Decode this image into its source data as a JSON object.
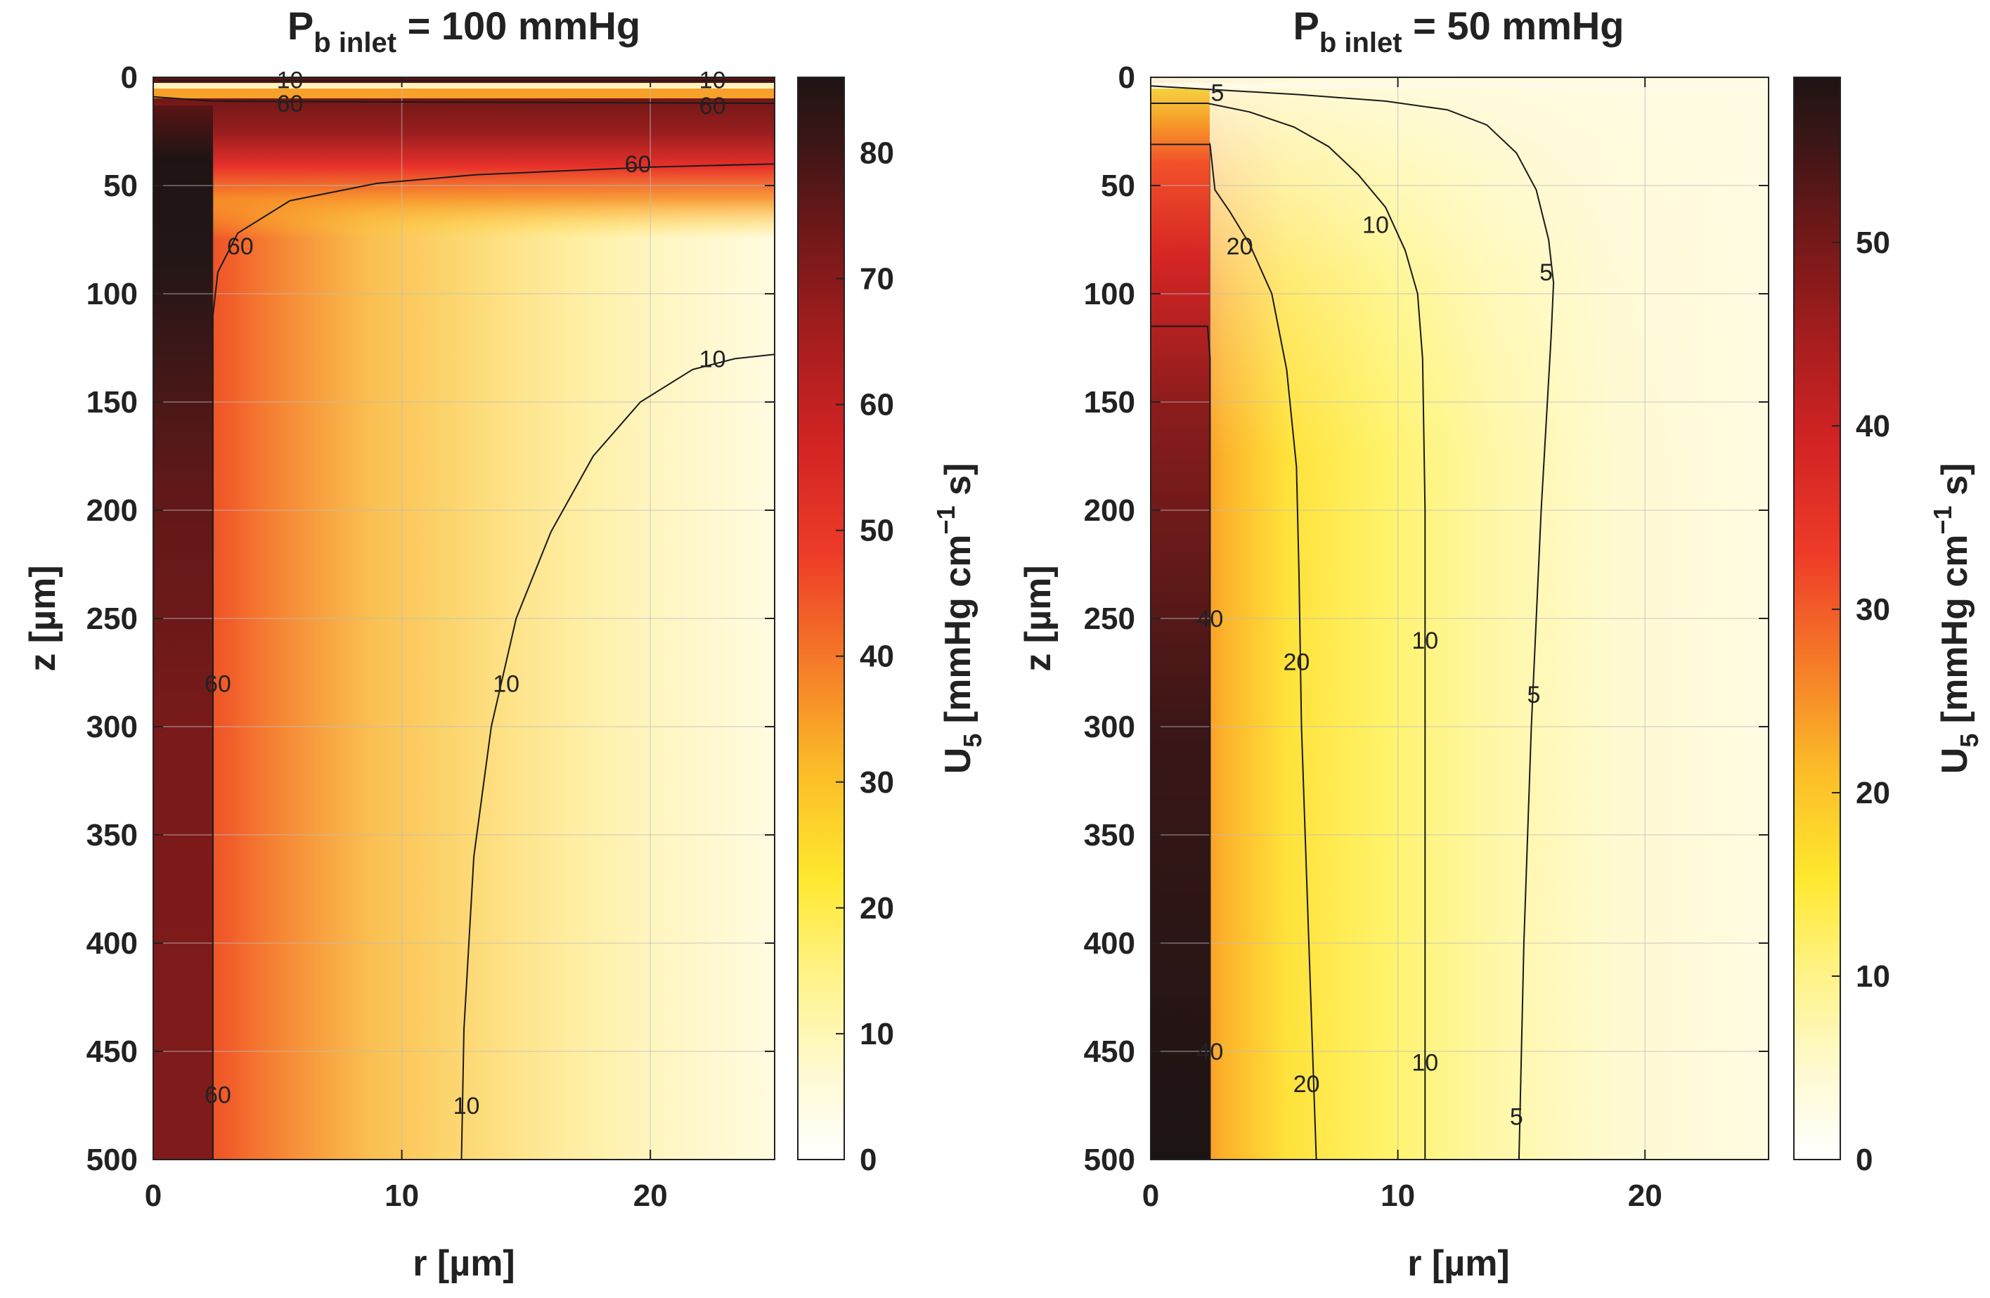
{
  "chart_data": [
    {
      "type": "heatmap",
      "title_main": "P",
      "title_sub": "b inlet",
      "title_rest": " = 100 mmHg",
      "xlabel": "r [µm]",
      "ylabel": "z [µm]",
      "xlim": [
        0,
        25
      ],
      "ylim": [
        0,
        500
      ],
      "xticks": [
        0,
        10,
        20
      ],
      "yticks": [
        0,
        50,
        100,
        150,
        200,
        250,
        300,
        350,
        400,
        450,
        500
      ],
      "colorbar": {
        "label_main": "U",
        "label_sub": "5",
        "label_rest1": " [mmHg cm",
        "label_sup": "−1",
        "label_rest2": " s]",
        "min": 0,
        "max": 86,
        "ticks": [
          0,
          10,
          20,
          30,
          40,
          50,
          60,
          70,
          80
        ]
      },
      "vessel_radius": 2.4,
      "contours": [
        {
          "level": "10",
          "points": [
            [
              0.2,
              1.5
            ],
            [
              25,
              1.5
            ]
          ],
          "labels": [
            [
              5.5,
              1.2
            ],
            [
              22.5,
              1.2
            ]
          ]
        },
        {
          "level": "60",
          "points": [
            [
              0,
              9
            ],
            [
              2.4,
              11
            ],
            [
              25,
              12
            ]
          ],
          "labels": [
            [
              5.5,
              12
            ],
            [
              22.5,
              13
            ]
          ]
        },
        {
          "level": "60",
          "points": [
            [
              2.4,
              110
            ],
            [
              2.6,
              90
            ],
            [
              3.4,
              72
            ],
            [
              5.5,
              57
            ],
            [
              9,
              49
            ],
            [
              13,
              45
            ],
            [
              17,
              43
            ],
            [
              20,
              41.5
            ],
            [
              25,
              40
            ]
          ],
          "labels": [
            [
              3.5,
              78
            ],
            [
              19.5,
              40
            ]
          ]
        },
        {
          "level": "60",
          "points": [
            [
              2.4,
              110
            ],
            [
              2.4,
              500
            ]
          ],
          "labels": [
            [
              2.6,
              280
            ],
            [
              2.6,
              470
            ]
          ]
        },
        {
          "level": "10",
          "points": [
            [
              12.4,
              500
            ],
            [
              12.5,
              440
            ],
            [
              12.9,
              360
            ],
            [
              13.6,
              300
            ],
            [
              14.6,
              250
            ],
            [
              16,
              210
            ],
            [
              17.7,
              175
            ],
            [
              19.6,
              150
            ],
            [
              21.7,
              135
            ],
            [
              23.4,
              130
            ],
            [
              25,
              128
            ]
          ],
          "labels": [
            [
              12.6,
              475
            ],
            [
              14.2,
              280
            ],
            [
              22.5,
              130
            ]
          ]
        }
      ]
    },
    {
      "type": "heatmap",
      "title_main": "P",
      "title_sub": "b inlet",
      "title_rest": " = 50 mmHg",
      "xlabel": "r [µm]",
      "ylabel": "z [µm]",
      "xlim": [
        0,
        25
      ],
      "ylim": [
        0,
        500
      ],
      "xticks": [
        0,
        10,
        20
      ],
      "yticks": [
        0,
        50,
        100,
        150,
        200,
        250,
        300,
        350,
        400,
        450,
        500
      ],
      "colorbar": {
        "label_main": "U",
        "label_sub": "5",
        "label_rest1": " [mmHg cm",
        "label_sup": "−1",
        "label_rest2": " s]",
        "min": 0,
        "max": 59,
        "ticks": [
          0,
          10,
          20,
          30,
          40,
          50
        ]
      },
      "vessel_radius": 2.4,
      "contours": [
        {
          "level": "5",
          "points": [
            [
              0,
              4
            ],
            [
              3,
              6
            ],
            [
              6,
              8
            ],
            [
              9.5,
              11
            ],
            [
              12,
              15
            ],
            [
              13.6,
              22
            ],
            [
              14.8,
              35
            ],
            [
              15.6,
              52
            ],
            [
              16.1,
              75
            ],
            [
              16.3,
              95
            ],
            [
              16.2,
              120
            ],
            [
              15.8,
              200
            ],
            [
              15.4,
              300
            ],
            [
              15.1,
              400
            ],
            [
              14.9,
              500
            ]
          ],
          "labels": [
            [
              2.7,
              7
            ],
            [
              16.0,
              90
            ],
            [
              15.5,
              285
            ],
            [
              14.8,
              480
            ]
          ]
        },
        {
          "level": "10",
          "points": [
            [
              0,
              12
            ],
            [
              2.3,
              12
            ],
            [
              4,
              16
            ],
            [
              5.8,
              23
            ],
            [
              7.2,
              32
            ],
            [
              8.4,
              45
            ],
            [
              9.5,
              60
            ],
            [
              10.3,
              80
            ],
            [
              10.8,
              100
            ],
            [
              11.0,
              130
            ],
            [
              11.1,
              200
            ],
            [
              11.1,
              300
            ],
            [
              11.1,
              400
            ],
            [
              11.1,
              500
            ]
          ],
          "labels": [
            [
              9.1,
              68
            ],
            [
              11.1,
              260
            ],
            [
              11.1,
              455
            ]
          ]
        },
        {
          "level": "20",
          "points": [
            [
              0,
              31
            ],
            [
              2.4,
              31
            ],
            [
              2.6,
              52
            ],
            [
              3.2,
              62
            ],
            [
              4.0,
              77
            ],
            [
              4.9,
              100
            ],
            [
              5.5,
              135
            ],
            [
              5.9,
              180
            ],
            [
              6.0,
              230
            ],
            [
              6.1,
              300
            ],
            [
              6.4,
              400
            ],
            [
              6.7,
              500
            ]
          ],
          "labels": [
            [
              3.6,
              78
            ],
            [
              5.9,
              270
            ],
            [
              6.3,
              465
            ]
          ]
        },
        {
          "level": "40",
          "points": [
            [
              0,
              115
            ],
            [
              2.3,
              115
            ],
            [
              2.4,
              130
            ],
            [
              2.4,
              500
            ]
          ],
          "labels": [
            [
              2.4,
              250
            ],
            [
              2.4,
              450
            ]
          ]
        }
      ]
    }
  ]
}
